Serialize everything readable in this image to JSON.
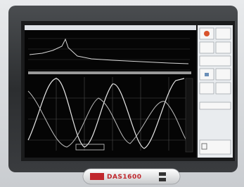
{
  "device": {
    "badge_label": "DAS1600"
  }
}
